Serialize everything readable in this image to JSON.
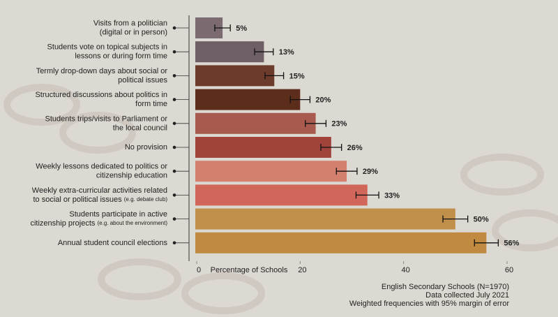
{
  "chart_data": {
    "type": "barh",
    "categories": [
      [
        "Visits from a politician",
        "(digital or in person)"
      ],
      [
        "Students vote on topical subjects in",
        "lessons or during form time"
      ],
      [
        "Termly drop-down days about social or",
        "political issues"
      ],
      [
        "Structured discussions about politics in",
        "form time"
      ],
      [
        "Students trips/visits to Parliament or",
        "the local council"
      ],
      [
        "No provision"
      ],
      [
        "Weekly lessons dedicated to politics or",
        "citizenship education"
      ],
      [
        "Weekly extra-curricular activities related",
        "to social or political issues"
      ],
      [
        "Students participate in active",
        "citizenship projects"
      ],
      [
        "Annual student council elections"
      ]
    ],
    "category_notes": [
      null,
      null,
      null,
      null,
      null,
      null,
      null,
      "(e.g. debate club)",
      "(e.g. about the environment)",
      null
    ],
    "values": [
      5,
      13,
      15,
      20,
      23,
      26,
      29,
      33,
      50,
      56
    ],
    "value_labels": [
      "5%",
      "13%",
      "15%",
      "20%",
      "23%",
      "26%",
      "29%",
      "33%",
      "50%",
      "56%"
    ],
    "errors": [
      1.5,
      1.8,
      1.8,
      1.9,
      2,
      2,
      2,
      2.2,
      2.4,
      2.3
    ],
    "colors": [
      "#7b6b71",
      "#6e5f66",
      "#6d3b2b",
      "#5d2d1b",
      "#a85a4e",
      "#a0443b",
      "#d4806e",
      "#d0675a",
      "#c0904b",
      "#c08a40"
    ],
    "xlabel": "Percentage of Schools",
    "xlim": [
      0,
      60
    ],
    "xticks": [
      0,
      20,
      40,
      60
    ],
    "footnotes": [
      "English Secondary Schools (N=1970)",
      "Data collected July 2021",
      "Weighted frequencies with 95% margin of error"
    ]
  }
}
